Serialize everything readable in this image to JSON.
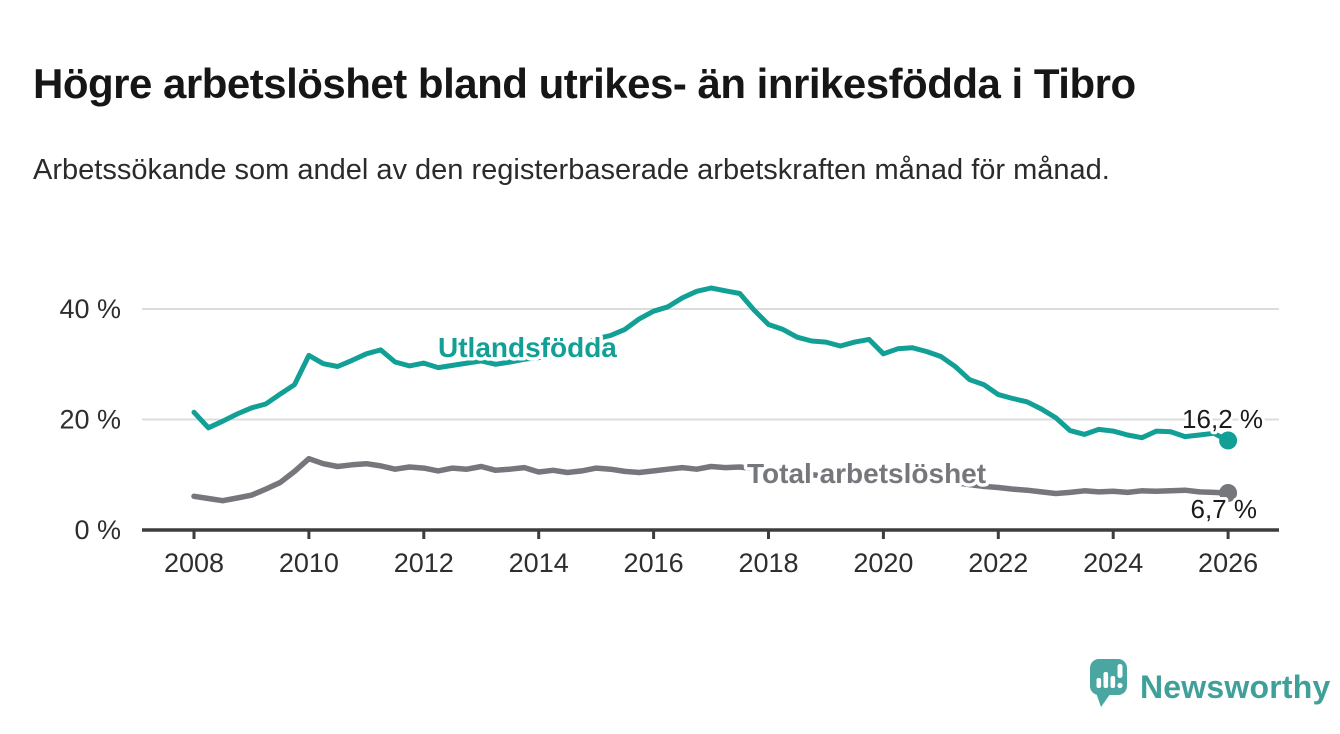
{
  "header": {
    "title": "Högre arbetslöshet bland utrikes- än inrikesfödda i Tibro",
    "subtitle": "Arbetssökande som andel av den registerbaserade arbetskraften månad för månad."
  },
  "chart_data": {
    "type": "line",
    "title": "Högre arbetslöshet bland utrikes- än inrikesfödda i Tibro",
    "subtitle": "Arbetssökande som andel av den registerbaserade arbetskraften månad för månad.",
    "unit": "%",
    "x_range": [
      2008,
      2026
    ],
    "x_step": 0.25,
    "ylim": [
      0,
      46
    ],
    "grid": "horizontal",
    "legend_position": "inline-labels",
    "yticks": {
      "values": [
        0,
        20,
        40
      ],
      "labels": [
        "0 %",
        "20 %",
        "40 %"
      ]
    },
    "xticks": {
      "values": [
        2008,
        2010,
        2012,
        2014,
        2016,
        2018,
        2020,
        2022,
        2024,
        2026
      ],
      "labels": [
        "2008",
        "2010",
        "2012",
        "2014",
        "2016",
        "2018",
        "2020",
        "2022",
        "2024",
        "2026"
      ]
    },
    "series": [
      {
        "name": "Utlandsfödda",
        "color": "#12a096",
        "end_label": "16,2 %",
        "end_value": 16.2,
        "values": [
          21.3,
          18.5,
          19.7,
          21.0,
          22.1,
          22.8,
          24.6,
          26.3,
          31.6,
          30.1,
          29.6,
          30.7,
          31.9,
          32.6,
          30.4,
          29.7,
          30.2,
          29.4,
          29.8,
          30.2,
          30.6,
          30.0,
          30.4,
          30.9,
          31.2,
          31.6,
          32.3,
          33.4,
          34.6,
          35.2,
          36.3,
          38.2,
          39.6,
          40.4,
          42.0,
          43.2,
          43.8,
          43.3,
          42.8,
          39.8,
          37.2,
          36.3,
          34.9,
          34.2,
          34.0,
          33.3,
          34.0,
          34.5,
          31.9,
          32.8,
          33.0,
          32.3,
          31.4,
          29.6,
          27.2,
          26.3,
          24.5,
          23.8,
          23.2,
          21.9,
          20.3,
          18.0,
          17.3,
          18.2,
          17.9,
          17.2,
          16.7,
          17.9,
          17.8,
          16.9,
          17.2,
          17.5,
          16.2
        ]
      },
      {
        "name": "Total arbetslöshet",
        "color": "#76767d",
        "end_label": "6,7 %",
        "end_value": 6.7,
        "values": [
          6.1,
          5.7,
          5.3,
          5.8,
          6.3,
          7.4,
          8.6,
          10.6,
          12.9,
          12.0,
          11.5,
          11.8,
          12.0,
          11.6,
          11.0,
          11.4,
          11.2,
          10.7,
          11.2,
          11.0,
          11.5,
          10.8,
          11.0,
          11.3,
          10.5,
          10.8,
          10.4,
          10.7,
          11.2,
          11.0,
          10.6,
          10.4,
          10.7,
          11.0,
          11.3,
          11.0,
          11.5,
          11.3,
          11.4,
          11.1,
          10.7,
          10.4,
          10.2,
          10.0,
          9.8,
          9.6,
          9.5,
          9.4,
          9.6,
          10.0,
          9.8,
          9.4,
          9.0,
          8.6,
          8.2,
          7.9,
          7.7,
          7.4,
          7.2,
          6.9,
          6.6,
          6.8,
          7.1,
          6.9,
          7.0,
          6.8,
          7.1,
          7.0,
          7.1,
          7.2,
          6.9,
          6.8,
          6.7
        ]
      }
    ],
    "colors": {
      "grid": "#dcdcdc",
      "axis": "#3d3d3d",
      "tick_text": "#2e2e2e",
      "end_label_text": "#1b1b1b"
    }
  },
  "branding": {
    "logo_text": "Newsworthy",
    "logo_color": "#4aa6a1",
    "logo_text_color": "#3fa09a",
    "logo_icon": "bar-chart-speech-bubble-icon"
  }
}
